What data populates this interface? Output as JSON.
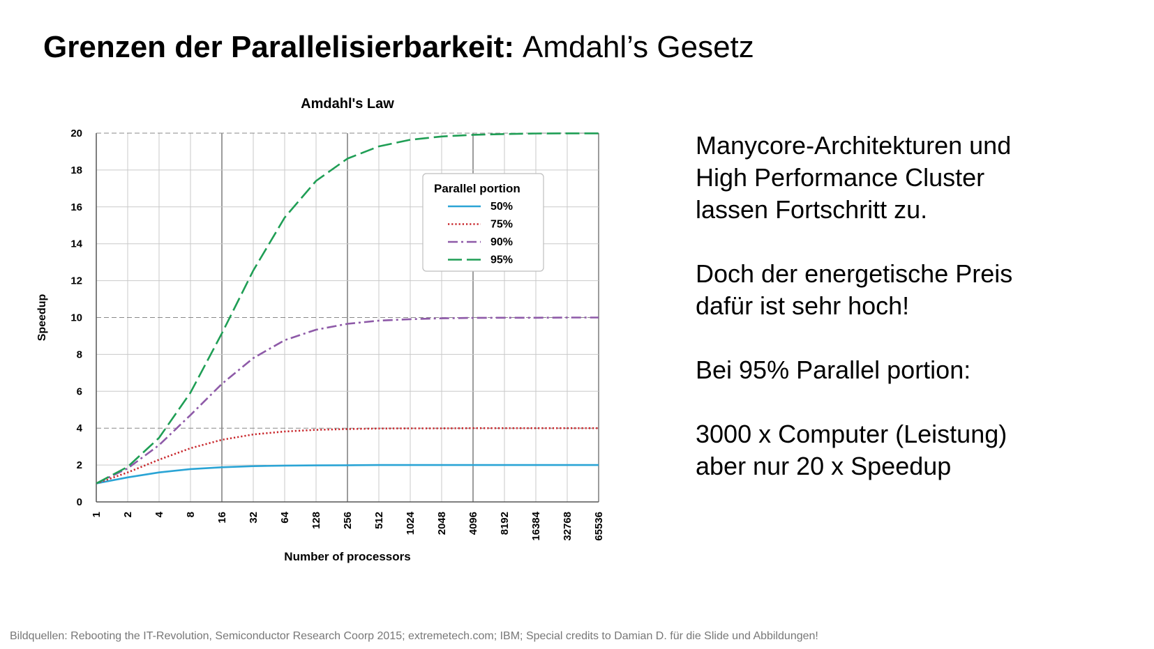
{
  "slide": {
    "title_bold": "Grenzen der Parallelisierbarkeit:",
    "title_light": "Amdahl’s Gesetz",
    "paragraphs": [
      [
        "Manycore-Architekturen und",
        "High Performance Cluster",
        "lassen Fortschritt zu."
      ],
      [
        "Doch der energetische Preis",
        "dafür ist sehr hoch!"
      ],
      [
        "Bei 95% Parallel portion:"
      ],
      [
        "3000 x Computer (Leistung)",
        "aber nur 20 x Speedup"
      ]
    ],
    "footer": "Bildquellen: Rebooting the IT-Revolution, Semiconductor Research Coorp 2015; extremetech.com; IBM; Special credits to Damian D. für die Slide und Abbildungen!"
  },
  "chart_data": {
    "type": "line",
    "title": "Amdahl's Law",
    "xlabel": "Number of processors",
    "ylabel": "Speedup",
    "x": [
      1,
      2,
      4,
      8,
      16,
      32,
      64,
      128,
      256,
      512,
      1024,
      2048,
      4096,
      8192,
      16384,
      32768,
      65536
    ],
    "x_scale": "log2",
    "ylim": [
      0,
      20
    ],
    "yticks": [
      0,
      2,
      4,
      6,
      8,
      10,
      12,
      14,
      16,
      18,
      20
    ],
    "grid": true,
    "legend_title": "Parallel portion",
    "legend_position": "top-right",
    "series": [
      {
        "name": "50%",
        "color": "#2aa4d5",
        "dash": "solid",
        "values": [
          1.0,
          1.33,
          1.6,
          1.78,
          1.88,
          1.94,
          1.97,
          1.98,
          1.99,
          2.0,
          2.0,
          2.0,
          2.0,
          2.0,
          2.0,
          2.0,
          2.0
        ]
      },
      {
        "name": "75%",
        "color": "#c8262b",
        "dash": "dotted",
        "values": [
          1.0,
          1.6,
          2.29,
          2.91,
          3.37,
          3.66,
          3.82,
          3.91,
          3.95,
          3.98,
          3.99,
          3.99,
          4.0,
          4.0,
          4.0,
          4.0,
          4.0
        ]
      },
      {
        "name": "90%",
        "color": "#8e5aa8",
        "dash": "dashdot",
        "values": [
          1.0,
          1.82,
          3.08,
          4.71,
          6.4,
          7.8,
          8.77,
          9.34,
          9.66,
          9.83,
          9.91,
          9.96,
          9.98,
          9.99,
          9.99,
          10.0,
          10.0
        ]
      },
      {
        "name": "95%",
        "color": "#1f9e55",
        "dash": "longdash",
        "values": [
          1.0,
          1.9,
          3.48,
          5.93,
          9.14,
          12.55,
          15.42,
          17.41,
          18.62,
          19.28,
          19.64,
          19.82,
          19.91,
          19.95,
          19.98,
          19.99,
          19.99
        ]
      }
    ]
  }
}
